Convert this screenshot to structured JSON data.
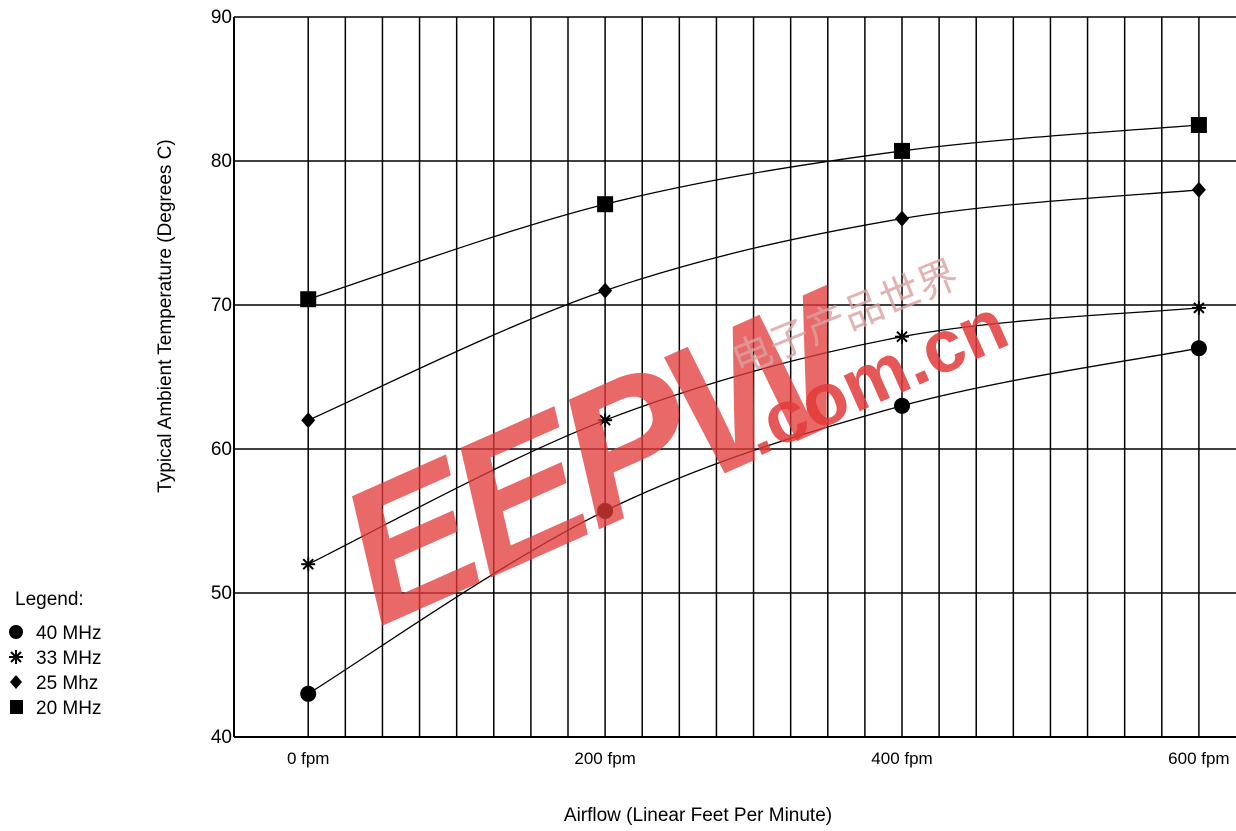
{
  "chart_data": {
    "type": "line",
    "title": "",
    "xlabel": "Airflow (Linear Feet Per Minute)",
    "ylabel": "Typical Ambient Temperature (Degrees C)",
    "x": [
      0,
      200,
      400,
      600
    ],
    "x_tick_labels": [
      "0 fpm",
      "200 fpm",
      "400 fpm",
      "600 fpm"
    ],
    "xlim": [
      -50,
      625
    ],
    "ylim": [
      40,
      90
    ],
    "y_ticks": [
      40,
      50,
      60,
      70,
      80,
      90
    ],
    "grid": true,
    "legend_placement": "left",
    "series": [
      {
        "name": "40 MHz",
        "marker": "circle",
        "values": [
          43,
          55.7,
          63,
          67
        ]
      },
      {
        "name": "33 MHz",
        "marker": "star",
        "values": [
          52,
          62,
          67.8,
          69.8
        ]
      },
      {
        "name": "25 Mhz",
        "marker": "diamond",
        "values": [
          62,
          71,
          76,
          78
        ]
      },
      {
        "name": "20 MHz",
        "marker": "square",
        "values": [
          70.4,
          77,
          80.7,
          82.5
        ]
      }
    ]
  },
  "legend": {
    "title": "Legend:",
    "items": [
      {
        "label": "40 MHz",
        "icon": "circle-icon"
      },
      {
        "label": "33 MHz",
        "icon": "star-icon"
      },
      {
        "label": "25 Mhz",
        "icon": "diamond-icon"
      },
      {
        "label": "20 MHz",
        "icon": "square-icon"
      }
    ]
  },
  "watermark": {
    "logo": "EEPW",
    "domain": ".com.cn",
    "cjk": "电子产品世界",
    "color": "#e03030"
  }
}
